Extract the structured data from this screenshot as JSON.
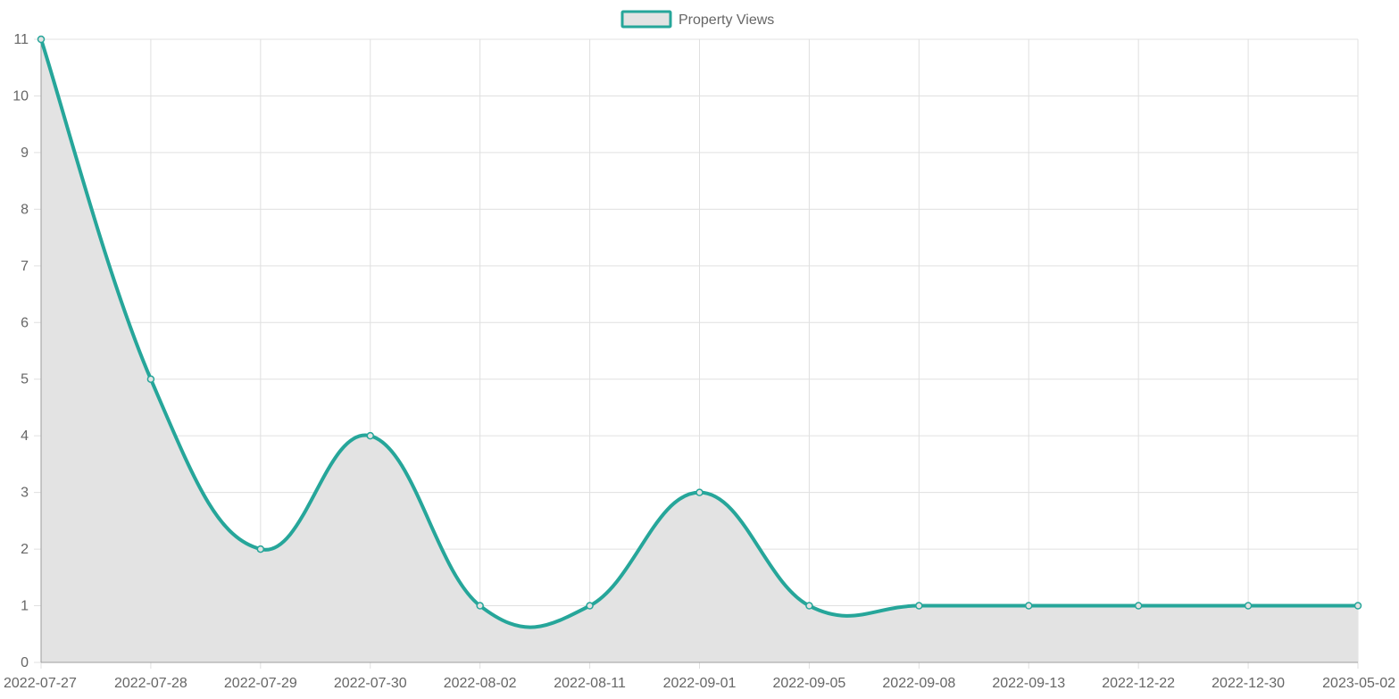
{
  "chart_data": {
    "type": "area",
    "x": [
      "2022-07-27",
      "2022-07-28",
      "2022-07-29",
      "2022-07-30",
      "2022-08-02",
      "2022-08-11",
      "2022-09-01",
      "2022-09-05",
      "2022-09-08",
      "2022-09-13",
      "2022-12-22",
      "2022-12-30",
      "2023-05-02"
    ],
    "series": [
      {
        "name": "Property Views",
        "values": [
          11,
          5,
          2,
          4,
          1,
          1,
          3,
          1,
          1,
          1,
          1,
          1,
          1
        ],
        "line_color": "#26a69a",
        "fill_color": "#e3e3e3"
      }
    ],
    "ylim": [
      0,
      11
    ],
    "y_ticks": [
      0,
      1,
      2,
      3,
      4,
      5,
      6,
      7,
      8,
      9,
      10,
      11
    ],
    "grid": true,
    "legend_position": "top-center",
    "smooth": true,
    "grid_color": "#e0e0e0",
    "axis_color": "#9e9e9e"
  }
}
